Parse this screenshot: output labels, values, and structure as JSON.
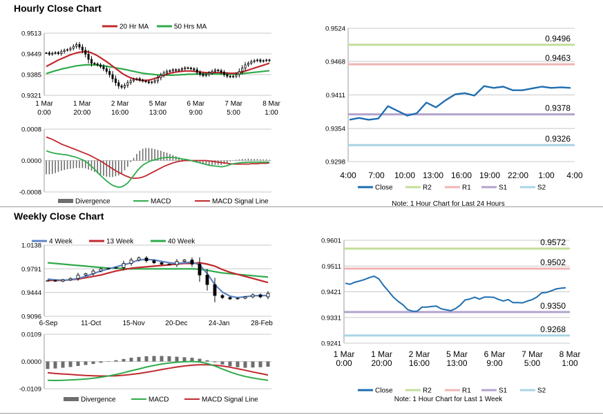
{
  "sections": {
    "hourly_title": "Hourly Close Chart",
    "weekly_title": "Weekly Close Chart"
  },
  "colors": {
    "ma20": "#c0282d",
    "ma50": "#2eaa4a",
    "ma4": "#5b84c4",
    "close": "#1f6db0",
    "r2": "#c3de98",
    "r1": "#f0b3b3",
    "s1": "#b3a2cc",
    "s2": "#a8d4e4",
    "macd": "#2eaa4a",
    "signal": "#c0282d",
    "divergence": "#6e6e6e"
  },
  "chart_data": [
    {
      "id": "hourly_price",
      "type": "candlestick",
      "legend": [
        "20 Hr MA",
        "50 Hrs MA"
      ],
      "y_ticks": [
        "0.9513",
        "0.9449",
        "0.9385",
        "0.9321"
      ],
      "ylim": [
        0.9321,
        0.9513
      ],
      "x_ticks": [
        [
          "1 Mar",
          "0:00"
        ],
        [
          "1 Mar",
          "20:00"
        ],
        [
          "2 Mar",
          "16:00"
        ],
        [
          "5 Mar",
          "13:00"
        ],
        [
          "6 Mar",
          "9:00"
        ],
        [
          "7 Mar",
          "5:00"
        ],
        [
          "8 Mar",
          "1:00"
        ]
      ],
      "close": [
        0.9452,
        0.9448,
        0.9451,
        0.9453,
        0.945,
        0.9456,
        0.946,
        0.9462,
        0.9466,
        0.9472,
        0.9478,
        0.947,
        0.946,
        0.9448,
        0.9432,
        0.942,
        0.9418,
        0.9415,
        0.941,
        0.9403,
        0.9395,
        0.9385,
        0.9372,
        0.936,
        0.935,
        0.9346,
        0.9352,
        0.936,
        0.9366,
        0.937,
        0.9372,
        0.9368,
        0.9365,
        0.9363,
        0.936,
        0.9362,
        0.9366,
        0.9375,
        0.9383,
        0.939,
        0.9395,
        0.9397,
        0.94,
        0.9398,
        0.94,
        0.9403,
        0.9406,
        0.9405,
        0.9403,
        0.94,
        0.9392,
        0.9386,
        0.9382,
        0.9385,
        0.939,
        0.9395,
        0.9399,
        0.9397,
        0.9392,
        0.9385,
        0.938,
        0.9378,
        0.938,
        0.9385,
        0.9395,
        0.9405,
        0.9415,
        0.942,
        0.9425,
        0.9428,
        0.943,
        0.9426,
        0.9428,
        0.943,
        0.9428
      ],
      "ma20": [
        0.941,
        0.9415,
        0.942,
        0.9425,
        0.943,
        0.9434,
        0.9438,
        0.9442,
        0.9446,
        0.9449,
        0.9452,
        0.9454,
        0.9455,
        0.9456,
        0.9455,
        0.9452,
        0.9448,
        0.9443,
        0.9437,
        0.9431,
        0.9425,
        0.9418,
        0.9411,
        0.9404,
        0.9397,
        0.939,
        0.9384,
        0.9379,
        0.9375,
        0.9372,
        0.937,
        0.9368,
        0.9367,
        0.9367,
        0.9368,
        0.937,
        0.9373,
        0.9376,
        0.938,
        0.9383,
        0.9386,
        0.9389,
        0.9391,
        0.9393,
        0.9394,
        0.9395,
        0.9396,
        0.9396,
        0.9396,
        0.9395,
        0.9394,
        0.9393,
        0.9392,
        0.9391,
        0.9391,
        0.9391,
        0.9391,
        0.9391,
        0.9391,
        0.9391,
        0.939,
        0.9389,
        0.9389,
        0.939,
        0.9391,
        0.9393,
        0.9396,
        0.9399,
        0.9402,
        0.9405,
        0.9408,
        0.9411,
        0.9414,
        0.9417,
        0.942
      ],
      "ma50": [
        0.9388,
        0.9391,
        0.9394,
        0.9397,
        0.9399,
        0.9402,
        0.9404,
        0.9406,
        0.9408,
        0.941,
        0.9412,
        0.9413,
        0.9414,
        0.9415,
        0.9415,
        0.9415,
        0.9415,
        0.9414,
        0.9413,
        0.9412,
        0.9411,
        0.9409,
        0.9408,
        0.9406,
        0.9404,
        0.9403,
        0.9401,
        0.9399,
        0.9397,
        0.9395,
        0.9393,
        0.9391,
        0.9389,
        0.9388,
        0.9387,
        0.9386,
        0.9385,
        0.9384,
        0.9384,
        0.9384,
        0.9383,
        0.9383,
        0.9383,
        0.9384,
        0.9384,
        0.9385,
        0.9385,
        0.9386,
        0.9386,
        0.9386,
        0.9387,
        0.9387,
        0.9387,
        0.9387,
        0.9387,
        0.9387,
        0.9387,
        0.9387,
        0.9386,
        0.9386,
        0.9386,
        0.9386,
        0.9386,
        0.9387,
        0.9387,
        0.9388,
        0.9389,
        0.939,
        0.9391,
        0.9392,
        0.9393,
        0.9394,
        0.9395,
        0.9396,
        0.9397
      ]
    },
    {
      "id": "hourly_macd",
      "type": "macd",
      "legend": [
        "Divergence",
        "MACD",
        "MACD Signal Line"
      ],
      "y_ticks": [
        "0.0008",
        "0.0000",
        "-0.0008"
      ],
      "ylim": [
        -0.0008,
        0.0008
      ],
      "macd": [
        0.00025,
        0.00022,
        0.0002,
        0.00018,
        0.00017,
        0.00016,
        0.00015,
        0.00014,
        0.00012,
        0.0001,
        8e-05,
        5e-05,
        2e-05,
        -2e-05,
        -8e-05,
        -0.00015,
        -0.00022,
        -0.0003,
        -0.00038,
        -0.00045,
        -0.00052,
        -0.00058,
        -0.00063,
        -0.00066,
        -0.00068,
        -0.00067,
        -0.00063,
        -0.00057,
        -0.00048,
        -0.00038,
        -0.00028,
        -0.00019,
        -0.00012,
        -7e-05,
        -3e-05,
        0.0,
        2e-05,
        4e-05,
        6e-05,
        7e-05,
        8e-05,
        8e-05,
        8e-05,
        7e-05,
        6e-05,
        4e-05,
        3e-05,
        2e-05,
        0.0,
        -2e-05,
        -4e-05,
        -6e-05,
        -8e-05,
        -0.0001,
        -0.00012,
        -0.00013,
        -0.00014,
        -0.00015,
        -0.00016,
        -0.00015,
        -0.00013,
        -0.0001,
        -8e-05,
        -7e-05,
        -6e-05,
        -5e-05,
        -5e-05,
        -4e-05,
        -4e-05,
        -4e-05,
        -4e-05,
        -4e-05,
        -4e-05,
        -4e-05,
        -4e-05
      ],
      "signal": [
        0.0006,
        0.00057,
        0.00054,
        0.0005,
        0.00046,
        0.00042,
        0.00039,
        0.00036,
        0.00033,
        0.0003,
        0.00027,
        0.00024,
        0.00021,
        0.00018,
        0.00015,
        0.00011,
        7e-05,
        3e-05,
        -1e-05,
        -6e-05,
        -0.00011,
        -0.00016,
        -0.00021,
        -0.00026,
        -0.0003,
        -0.00034,
        -0.00038,
        -0.00041,
        -0.00044,
        -0.00045,
        -0.00045,
        -0.00044,
        -0.00042,
        -0.00039,
        -0.00035,
        -0.00031,
        -0.00027,
        -0.00023,
        -0.00019,
        -0.00015,
        -0.00012,
        -9e-05,
        -6e-05,
        -4e-05,
        -2e-05,
        -1e-05,
        0.0,
        0.0,
        0.0,
        0.0,
        0.0,
        0.0,
        0.0,
        0.0,
        -1e-05,
        -2e-05,
        -3e-05,
        -4e-05,
        -5e-05,
        -6e-05,
        -7e-05,
        -8e-05,
        -9e-05,
        -9e-05,
        -9e-05,
        -9e-05,
        -9e-05,
        -9e-05,
        -8e-05,
        -8e-05,
        -8e-05,
        -7e-05,
        -7e-05,
        -7e-05,
        -6e-05
      ]
    },
    {
      "id": "hourly_close_24h",
      "type": "line",
      "y_ticks": [
        "0.9524",
        "0.9468",
        "0.9411",
        "0.9354",
        "0.9298"
      ],
      "ylim": [
        0.9298,
        0.9524
      ],
      "x_ticks": [
        "4:00",
        "7:00",
        "10:00",
        "13:00",
        "16:00",
        "19:00",
        "22:00",
        "1:00",
        "4:00"
      ],
      "levels": {
        "R2": 0.9496,
        "R1": 0.9463,
        "S1": 0.9378,
        "S2": 0.9326
      },
      "level_labels": {
        "R2": "0.9496",
        "R1": "0.9463",
        "S1": "0.9378",
        "S2": "0.9326"
      },
      "close": [
        0.9369,
        0.9372,
        0.9369,
        0.9371,
        0.9392,
        0.9384,
        0.9376,
        0.938,
        0.9398,
        0.939,
        0.9402,
        0.9412,
        0.9414,
        0.941,
        0.9426,
        0.9423,
        0.9425,
        0.9419,
        0.9419,
        0.9422,
        0.9425,
        0.9423,
        0.9424,
        0.9423
      ],
      "legend": [
        "Close",
        "R2",
        "R1",
        "S1",
        "S2"
      ],
      "note": "Note: 1 Hour Chart for Last 24 Hours"
    },
    {
      "id": "weekly_price",
      "type": "candlestick",
      "legend": [
        "4 Week",
        "13 Week",
        "40 Week"
      ],
      "y_ticks": [
        "1.0138",
        "0.9791",
        "0.9444",
        "0.9096"
      ],
      "ylim": [
        0.9096,
        1.0138
      ],
      "x_ticks": [
        "6-Sep",
        "11-Oct",
        "15-Nov",
        "20-Dec",
        "24-Jan",
        "28-Feb"
      ],
      "close": [
        0.962,
        0.961,
        0.963,
        0.965,
        0.97,
        0.972,
        0.976,
        0.979,
        0.98,
        0.981,
        0.987,
        0.992,
        0.995,
        0.991,
        0.988,
        0.986,
        0.985,
        0.99,
        0.992,
        0.986,
        0.97,
        0.956,
        0.94,
        0.937,
        0.935,
        0.936,
        0.938,
        0.941,
        0.938,
        0.943
      ],
      "ma4": [
        0.964,
        0.963,
        0.9625,
        0.963,
        0.965,
        0.968,
        0.972,
        0.976,
        0.979,
        0.982,
        0.985,
        0.988,
        0.992,
        0.993,
        0.992,
        0.99,
        0.988,
        0.987,
        0.988,
        0.989,
        0.985,
        0.972,
        0.956,
        0.945,
        0.939,
        0.937,
        0.938,
        0.9395,
        0.94,
        0.94
      ],
      "ma13": [
        0.962,
        0.962,
        0.962,
        0.963,
        0.964,
        0.966,
        0.968,
        0.97,
        0.973,
        0.976,
        0.978,
        0.98,
        0.981,
        0.982,
        0.983,
        0.984,
        0.985,
        0.986,
        0.987,
        0.987,
        0.988,
        0.986,
        0.983,
        0.978,
        0.974,
        0.971,
        0.968,
        0.965,
        0.962,
        0.959
      ],
      "ma40": [
        0.988,
        0.987,
        0.986,
        0.985,
        0.984,
        0.983,
        0.982,
        0.981,
        0.98,
        0.98,
        0.9795,
        0.979,
        0.979,
        0.979,
        0.979,
        0.979,
        0.979,
        0.979,
        0.979,
        0.979,
        0.9785,
        0.977,
        0.975,
        0.973,
        0.972,
        0.971,
        0.97,
        0.969,
        0.968,
        0.967
      ]
    },
    {
      "id": "weekly_macd",
      "type": "macd",
      "legend": [
        "Divergence",
        "MACD",
        "MACD Signal Line"
      ],
      "y_ticks": [
        "0.0109",
        "0.0000",
        "-0.0109"
      ],
      "ylim": [
        -0.0109,
        0.0109
      ],
      "macd": [
        -0.0075,
        -0.0076,
        -0.0075,
        -0.0074,
        -0.0072,
        -0.007,
        -0.0067,
        -0.0063,
        -0.0058,
        -0.0052,
        -0.0045,
        -0.0037,
        -0.003,
        -0.0022,
        -0.0016,
        -0.001,
        -0.0006,
        -0.0003,
        -0.0001,
        0.0,
        -0.0002,
        -0.0008,
        -0.0018,
        -0.003,
        -0.0042,
        -0.0052,
        -0.006,
        -0.0066,
        -0.0071,
        -0.0075
      ],
      "signal": [
        -0.0045,
        -0.0048,
        -0.005,
        -0.0052,
        -0.0054,
        -0.0056,
        -0.0057,
        -0.0058,
        -0.0058,
        -0.0057,
        -0.0055,
        -0.0052,
        -0.0048,
        -0.0043,
        -0.0038,
        -0.0032,
        -0.0027,
        -0.0022,
        -0.0018,
        -0.0015,
        -0.0013,
        -0.0013,
        -0.0015,
        -0.0018,
        -0.0023,
        -0.0029,
        -0.0035,
        -0.0042,
        -0.0048,
        -0.0054
      ],
      "divergence": [
        -0.003,
        -0.0028,
        -0.0025,
        -0.0022,
        -0.0018,
        -0.0014,
        -0.001,
        -0.0005,
        0.0,
        0.0005,
        0.001,
        0.0015,
        0.0018,
        0.0021,
        0.0022,
        0.0022,
        0.0021,
        0.0019,
        0.0017,
        0.0015,
        0.0011,
        0.0005,
        -0.0003,
        -0.0012,
        -0.0019,
        -0.0023,
        -0.0025,
        -0.0024,
        -0.0023,
        -0.0021
      ]
    },
    {
      "id": "weekly_close_1w",
      "type": "line",
      "y_ticks": [
        "0.9601",
        "0.9511",
        "0.9421",
        "0.9331",
        "0.9241"
      ],
      "ylim": [
        0.9241,
        0.9601
      ],
      "x_ticks": [
        [
          "1 Mar",
          "0:00"
        ],
        [
          "1 Mar",
          "20:00"
        ],
        [
          "2 Mar",
          "16:00"
        ],
        [
          "5 Mar",
          "13:00"
        ],
        [
          "6 Mar",
          "9:00"
        ],
        [
          "7 Mar",
          "5:00"
        ],
        [
          "8 Mar",
          "1:00"
        ]
      ],
      "levels": {
        "R2": 0.9572,
        "R1": 0.9502,
        "S1": 0.935,
        "S2": 0.9268
      },
      "level_labels": {
        "R2": "0.9572",
        "R1": "0.9502",
        "S1": "0.9350",
        "S2": "0.9268"
      },
      "close": [
        0.9452,
        0.9449,
        0.9451,
        0.9455,
        0.9462,
        0.9472,
        0.948,
        0.946,
        0.944,
        0.942,
        0.9405,
        0.939,
        0.9375,
        0.936,
        0.9354,
        0.9356,
        0.9363,
        0.937,
        0.9372,
        0.937,
        0.9367,
        0.936,
        0.9358,
        0.9366,
        0.9376,
        0.9387,
        0.9395,
        0.94,
        0.9398,
        0.9402,
        0.9403,
        0.94,
        0.9397,
        0.9393,
        0.939,
        0.9386,
        0.9384,
        0.9382,
        0.9384,
        0.939,
        0.94,
        0.9412,
        0.9422,
        0.9428,
        0.9432,
        0.943,
        0.943
      ],
      "legend": [
        "Close",
        "R2",
        "R1",
        "S1",
        "S2"
      ],
      "note": "Note: 1 Hour Chart for Last 1 Week"
    }
  ]
}
